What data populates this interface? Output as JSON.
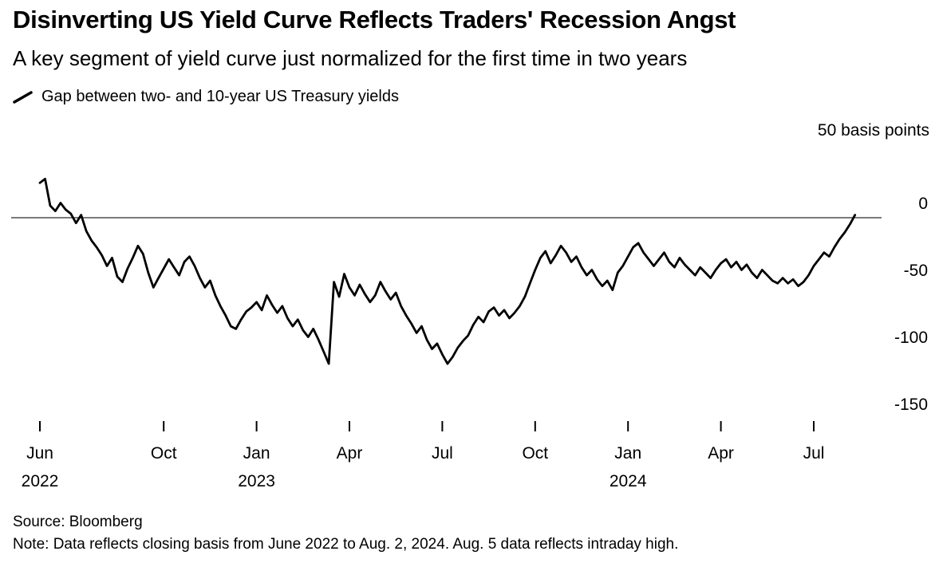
{
  "header": {
    "title": "Disinverting US Yield Curve Reflects Traders' Recession Angst",
    "subtitle": "A key segment of yield curve just normalized for the first time in two years"
  },
  "legend": {
    "label": "Gap between two- and 10-year US Treasury yields"
  },
  "footer": {
    "source": "Source: Bloomberg",
    "note": "Note: Data reflects closing basis from June 2022 to Aug. 2, 2024. Aug. 5 data reflects intraday high."
  },
  "chart_data": {
    "type": "line",
    "title": "Gap between two- and 10-year US Treasury yields",
    "unit": "basis points",
    "ylabel_top": "50 basis points",
    "x_range": [
      "Jun 2022",
      "Aug 2024"
    ],
    "ylim": [
      -150,
      50
    ],
    "grid": "zero-line-only",
    "legend_position": "top-left",
    "line_color": "#000000",
    "zero_line_color": "#4f4f4f",
    "points_per_month": 6,
    "yticks": [
      {
        "label": "0",
        "value": 0
      },
      {
        "label": "-50",
        "value": -50
      },
      {
        "label": "-100",
        "value": -100
      },
      {
        "label": "-150",
        "value": -150
      }
    ],
    "xticks": [
      {
        "label": "Jun",
        "year": "2022",
        "month_index": 0
      },
      {
        "label": "Oct",
        "month_index": 4
      },
      {
        "label": "Jan",
        "year": "2023",
        "month_index": 7
      },
      {
        "label": "Apr",
        "month_index": 10
      },
      {
        "label": "Jul",
        "month_index": 13
      },
      {
        "label": "Oct",
        "month_index": 16
      },
      {
        "label": "Jan",
        "year": "2024",
        "month_index": 19
      },
      {
        "label": "Apr",
        "month_index": 22
      },
      {
        "label": "Jul",
        "month_index": 25
      }
    ],
    "values": [
      26,
      29,
      9,
      5,
      11,
      6,
      3,
      -4,
      2,
      -10,
      -17,
      -22,
      -28,
      -36,
      -30,
      -44,
      -48,
      -38,
      -30,
      -21,
      -27,
      -41,
      -52,
      -45,
      -38,
      -31,
      -37,
      -43,
      -33,
      -29,
      -36,
      -45,
      -52,
      -47,
      -58,
      -66,
      -73,
      -81,
      -83,
      -76,
      -70,
      -67,
      -63,
      -69,
      -58,
      -65,
      -71,
      -66,
      -75,
      -81,
      -76,
      -84,
      -89,
      -83,
      -91,
      -100,
      -109,
      -48,
      -59,
      -42,
      -52,
      -58,
      -50,
      -57,
      -63,
      -58,
      -48,
      -55,
      -61,
      -56,
      -66,
      -73,
      -79,
      -86,
      -81,
      -91,
      -98,
      -94,
      -102,
      -109,
      -104,
      -97,
      -92,
      -88,
      -80,
      -74,
      -78,
      -70,
      -67,
      -73,
      -69,
      -75,
      -71,
      -66,
      -59,
      -49,
      -39,
      -30,
      -25,
      -34,
      -28,
      -21,
      -26,
      -33,
      -29,
      -37,
      -43,
      -39,
      -46,
      -51,
      -47,
      -54,
      -41,
      -36,
      -29,
      -22,
      -19,
      -26,
      -31,
      -36,
      -31,
      -26,
      -33,
      -37,
      -30,
      -35,
      -39,
      -43,
      -37,
      -41,
      -45,
      -39,
      -34,
      -31,
      -37,
      -33,
      -39,
      -35,
      -41,
      -45,
      -39,
      -43,
      -47,
      -49,
      -45,
      -49,
      -46,
      -51,
      -48,
      -43,
      -36,
      -31,
      -26,
      -29,
      -22,
      -16,
      -11,
      -5,
      2
    ]
  }
}
